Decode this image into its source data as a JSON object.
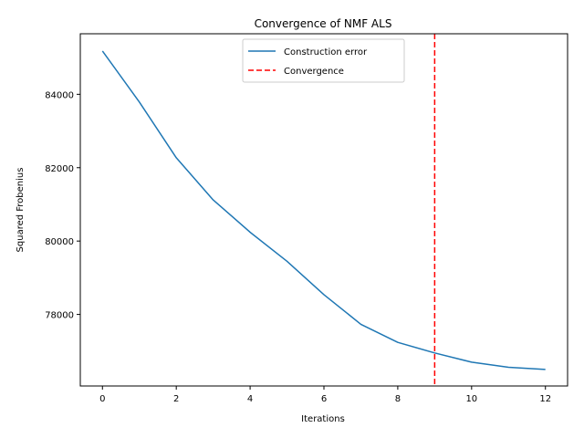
{
  "chart_data": {
    "type": "line",
    "title": "Convergence of NMF ALS",
    "xlabel": "Iterations",
    "ylabel": "Squared Frobenius",
    "xlim": [
      -0.6,
      12.6
    ],
    "ylim": [
      76050,
      85650
    ],
    "x_ticks": [
      0,
      2,
      4,
      6,
      8,
      10,
      12
    ],
    "y_ticks": [
      78000,
      80000,
      82000,
      84000
    ],
    "x_tick_labels": [
      "0",
      "2",
      "4",
      "6",
      "8",
      "10",
      "12"
    ],
    "y_tick_labels": [
      "78000",
      "80000",
      "82000",
      "84000"
    ],
    "grid": false,
    "legend_position": "top-center",
    "series": [
      {
        "name": "Construction error",
        "color": "#1f77b4",
        "style": "solid",
        "x": [
          0,
          1,
          2,
          3,
          4,
          5,
          6,
          7,
          8,
          9,
          10,
          11,
          12
        ],
        "y": [
          85180,
          83790,
          82270,
          81120,
          80240,
          79450,
          78540,
          77730,
          77240,
          76950,
          76700,
          76560,
          76500
        ]
      }
    ],
    "vlines": [
      {
        "name": "Convergence",
        "x": 9,
        "color": "#ff0000",
        "style": "dashed"
      }
    ]
  }
}
